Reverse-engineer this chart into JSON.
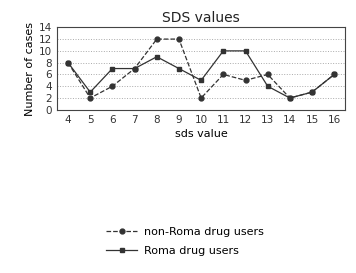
{
  "title": "SDS values",
  "xlabel": "sds value",
  "ylabel": "Number of cases",
  "x_values": [
    4,
    5,
    6,
    7,
    8,
    9,
    10,
    11,
    12,
    13,
    14,
    15,
    16
  ],
  "non_roma": [
    8,
    2,
    4,
    7,
    12,
    12,
    2,
    6,
    5,
    6,
    2,
    3,
    6
  ],
  "roma": [
    8,
    3,
    7,
    7,
    9,
    7,
    5,
    10,
    10,
    4,
    2,
    3,
    6
  ],
  "ylim": [
    0,
    14
  ],
  "yticks": [
    0,
    2,
    4,
    6,
    8,
    10,
    12,
    14
  ],
  "non_roma_label": "non-Roma drug users",
  "roma_label": "Roma drug users",
  "line_color": "#333333",
  "bg_color": "#ffffff",
  "title_fontsize": 10,
  "axis_label_fontsize": 8,
  "tick_fontsize": 7.5
}
